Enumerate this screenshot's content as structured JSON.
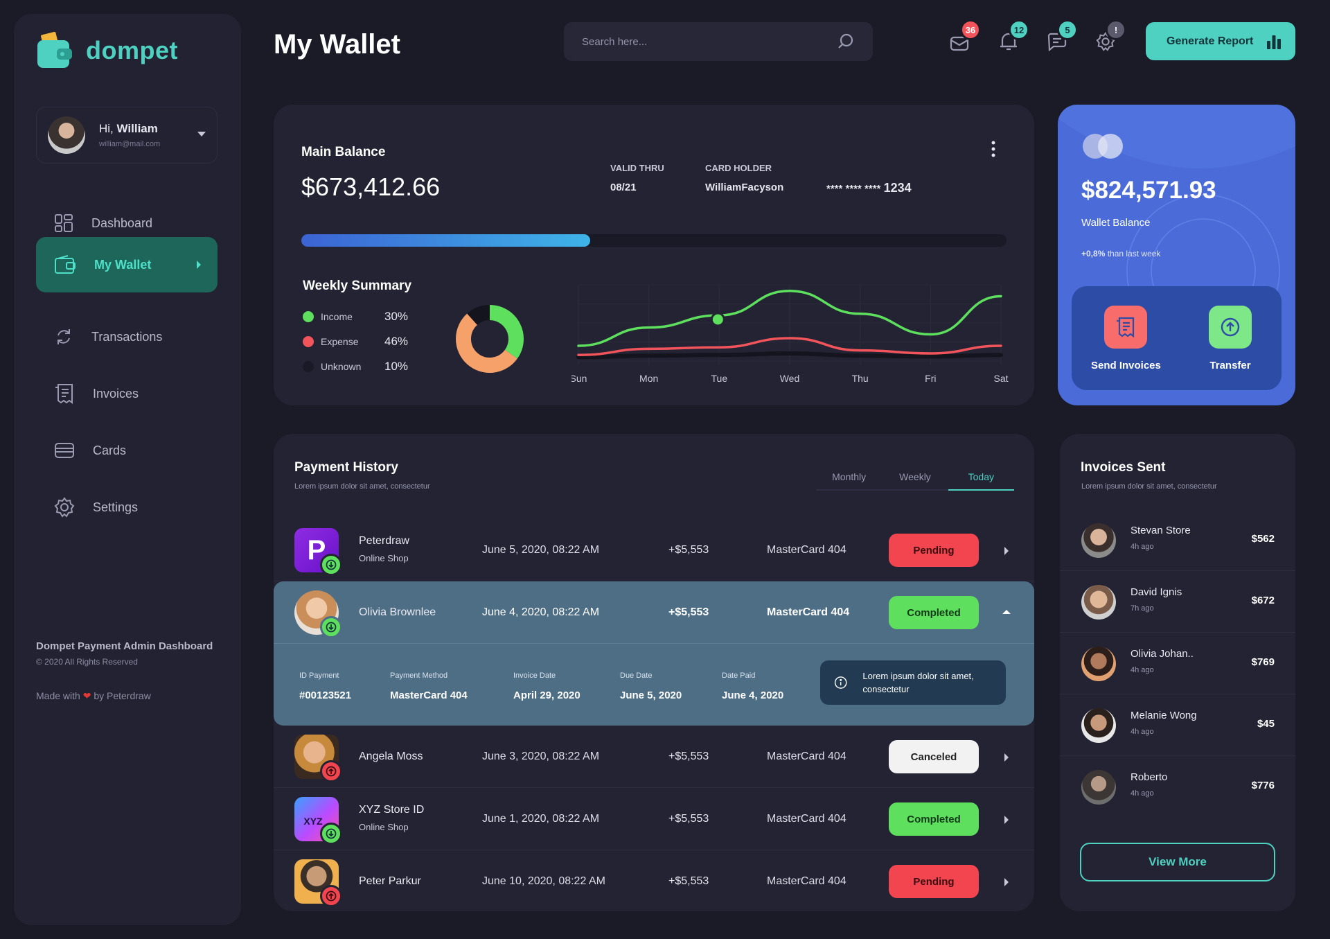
{
  "app": {
    "name": "dompet",
    "page_title": "My Wallet"
  },
  "user": {
    "greeting": "Hi,",
    "name": "William",
    "email": "william@mail.com"
  },
  "sidebar": {
    "items": [
      {
        "label": "Dashboard",
        "icon": "dashboard-icon"
      },
      {
        "label": "My Wallet",
        "icon": "wallet-icon",
        "active": true
      },
      {
        "label": "Transactions",
        "icon": "refresh-icon"
      },
      {
        "label": "Invoices",
        "icon": "receipt-icon"
      },
      {
        "label": "Cards",
        "icon": "card-icon"
      },
      {
        "label": "Settings",
        "icon": "gear-icon"
      }
    ],
    "footer_title": "Dompet Payment Admin Dashboard",
    "footer_copy": "© 2020 All Rights Reserved",
    "made_with_prefix": "Made with",
    "made_with_suffix": "by Peterdraw"
  },
  "header": {
    "search_placeholder": "Search here...",
    "badges": [
      {
        "icon": "mail-icon",
        "count": "36",
        "color": "#f2545b"
      },
      {
        "icon": "bell-icon",
        "count": "12",
        "color": "#4fd1c1"
      },
      {
        "icon": "chat-icon",
        "count": "5",
        "color": "#4fd1c1"
      },
      {
        "icon": "gear-icon",
        "count": "!",
        "color": "#5a5a6c"
      }
    ],
    "generate_button": "Generate Report"
  },
  "main_balance": {
    "label": "Main Balance",
    "amount": "$673,412.66",
    "valid_thru_label": "VALID THRU",
    "valid_thru": "08/21",
    "holder_label": "CARD HOLDER",
    "holder": "WilliamFacyson",
    "card_mask": "**** **** ****",
    "card_last": "1234",
    "progress": 0.41
  },
  "weekly_summary": {
    "title": "Weekly Summary",
    "legend": [
      {
        "label": "Income",
        "pct": "30%",
        "color": "#5ee05e",
        "value": 30
      },
      {
        "label": "Expense",
        "pct": "46%",
        "color": "#f2545b",
        "value": 46
      },
      {
        "label": "Unknown",
        "pct": "10%",
        "color": "#1f1f2e",
        "value": 10
      }
    ]
  },
  "chart_data": {
    "type": "line",
    "categories": [
      "Sun",
      "Mon",
      "Tue",
      "Wed",
      "Thu",
      "Fri",
      "Sat"
    ],
    "series": [
      {
        "color": "#5ee05e",
        "values": [
          20,
          44,
          60,
          92,
          62,
          35,
          85
        ]
      },
      {
        "color": "#f2545b",
        "values": [
          8,
          16,
          18,
          30,
          14,
          10,
          20
        ]
      },
      {
        "color": "#14141f",
        "values": [
          5,
          7,
          8,
          10,
          7,
          6,
          8
        ]
      }
    ],
    "ylim": [
      0,
      100
    ],
    "grid": true
  },
  "wallet": {
    "amount": "$824,571.93",
    "label": "Wallet Balance",
    "change": "+0,8%",
    "change_suffix": "than last week",
    "actions": [
      {
        "label": "Send Invoices",
        "icon": "receipt-icon",
        "color": "#f86c6b"
      },
      {
        "label": "Transfer",
        "icon": "upload-icon",
        "color": "#7ee787"
      }
    ]
  },
  "payment_history": {
    "title": "Payment History",
    "subtitle": "Lorem ipsum dolor sit amet, consectetur",
    "tabs": [
      "Monthly",
      "Weekly",
      "Today"
    ],
    "active_tab": "Today",
    "rows": [
      {
        "name": "Peterdraw",
        "sub": "Online Shop",
        "date": "June 5, 2020, 08:22 AM",
        "amount": "+$5,553",
        "method": "MasterCard 404",
        "status": "Pending",
        "direction": "in"
      },
      {
        "name": "Olivia Brownlee",
        "sub": "",
        "date": "June 4, 2020, 08:22 AM",
        "amount": "+$5,553",
        "method": "MasterCard 404",
        "status": "Completed",
        "direction": "in"
      },
      {
        "name": "Angela Moss",
        "sub": "",
        "date": "June 3, 2020, 08:22 AM",
        "amount": "+$5,553",
        "method": "MasterCard 404",
        "status": "Canceled",
        "direction": "out"
      },
      {
        "name": "XYZ Store ID",
        "sub": "Online Shop",
        "date": "June 1, 2020, 08:22 AM",
        "amount": "+$5,553",
        "method": "MasterCard 404",
        "status": "Completed",
        "direction": "in",
        "logo_text": "XYZ"
      },
      {
        "name": "Peter Parkur",
        "sub": "",
        "date": "June 10, 2020, 08:22 AM",
        "amount": "+$5,553",
        "method": "MasterCard 404",
        "status": "Pending",
        "direction": "out"
      }
    ],
    "details": {
      "id_label": "ID Payment",
      "id": "#00123521",
      "method_label": "Payment Method",
      "method": "MasterCard 404",
      "invoice_label": "Invoice Date",
      "invoice": "April 29, 2020",
      "due_label": "Due Date",
      "due": "June 5, 2020",
      "paid_label": "Date Paid",
      "paid": "June 4, 2020",
      "note": "Lorem ipsum dolor sit amet, consectetur"
    }
  },
  "invoices_sent": {
    "title": "Invoices Sent",
    "subtitle": "Lorem ipsum dolor sit amet, consectetur",
    "items": [
      {
        "name": "Stevan Store",
        "ago": "4h ago",
        "amount": "$562"
      },
      {
        "name": "David Ignis",
        "ago": "7h ago",
        "amount": "$672"
      },
      {
        "name": "Olivia Johan..",
        "ago": "4h ago",
        "amount": "$769"
      },
      {
        "name": "Melanie Wong",
        "ago": "4h ago",
        "amount": "$45"
      },
      {
        "name": "Roberto",
        "ago": "4h ago",
        "amount": "$776"
      }
    ],
    "view_more": "View More"
  }
}
